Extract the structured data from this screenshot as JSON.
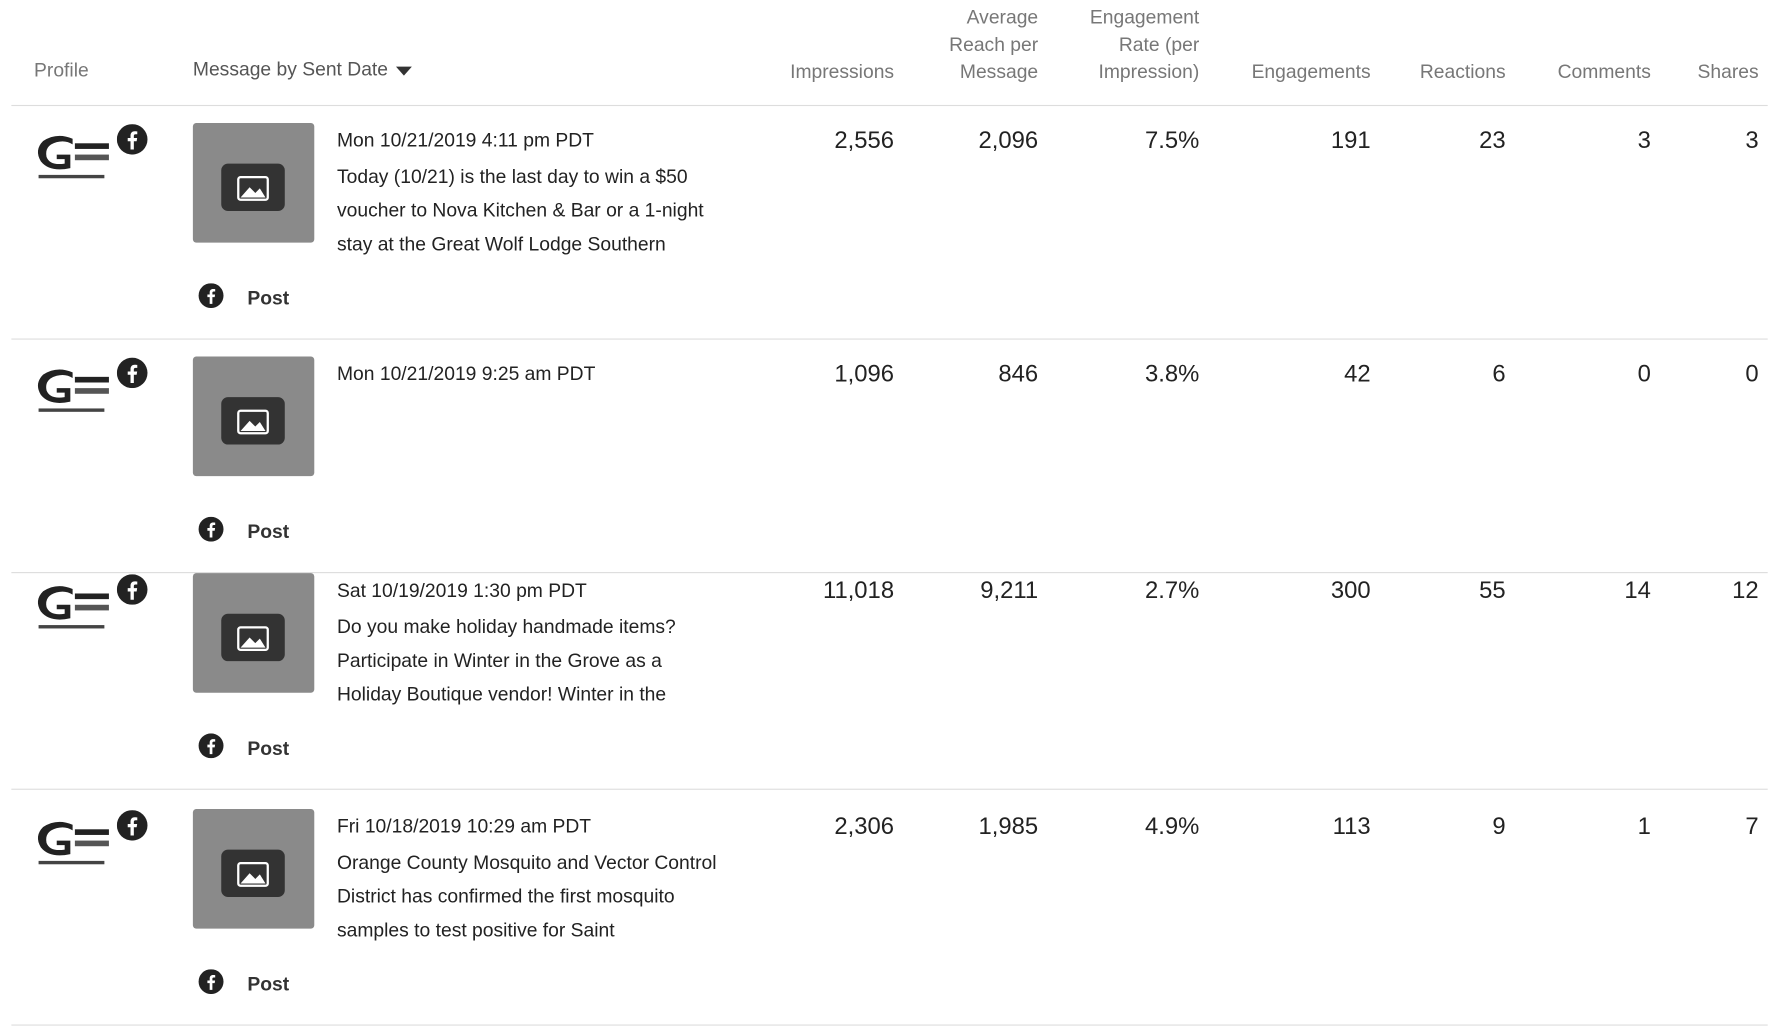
{
  "table": {
    "columns": [
      "Profile",
      "Message by Sent Date",
      "Impressions",
      "Average Reach per Message",
      "Engagement Rate (per Impression)",
      "Engagements",
      "Reactions",
      "Comments",
      "Shares"
    ],
    "rows": [
      {
        "date": "Mon 10/21/2019 4:11 pm PDT",
        "message": "Today (10/21) is the last day to win a $50 voucher to Nova Kitchen & Bar or a 1-night stay at the Great Wolf Lodge Southern",
        "type": "Post",
        "metrics": [
          "2,556",
          "2,096",
          "7.5%",
          "191",
          "23",
          "3",
          "3"
        ]
      },
      {
        "date": "Mon 10/21/2019 9:25 am PDT",
        "message": "",
        "type": "Post",
        "metrics": [
          "1,096",
          "846",
          "3.8%",
          "42",
          "6",
          "0",
          "0"
        ]
      },
      {
        "date": "Sat 10/19/2019 1:30 pm PDT",
        "message": "Do you make holiday handmade items? Participate in Winter in the Grove as a Holiday Boutique vendor! Winter in the",
        "type": "Post",
        "metrics": [
          "11,018",
          "9,211",
          "2.7%",
          "300",
          "55",
          "14",
          "12"
        ]
      },
      {
        "date": "Fri 10/18/2019 10:29 am PDT",
        "message": "Orange County Mosquito and Vector Control District has confirmed the first mosquito samples to test positive for Saint",
        "type": "Post",
        "metrics": [
          "2,306",
          "1,985",
          "4.9%",
          "113",
          "9",
          "1",
          "7"
        ]
      }
    ]
  }
}
